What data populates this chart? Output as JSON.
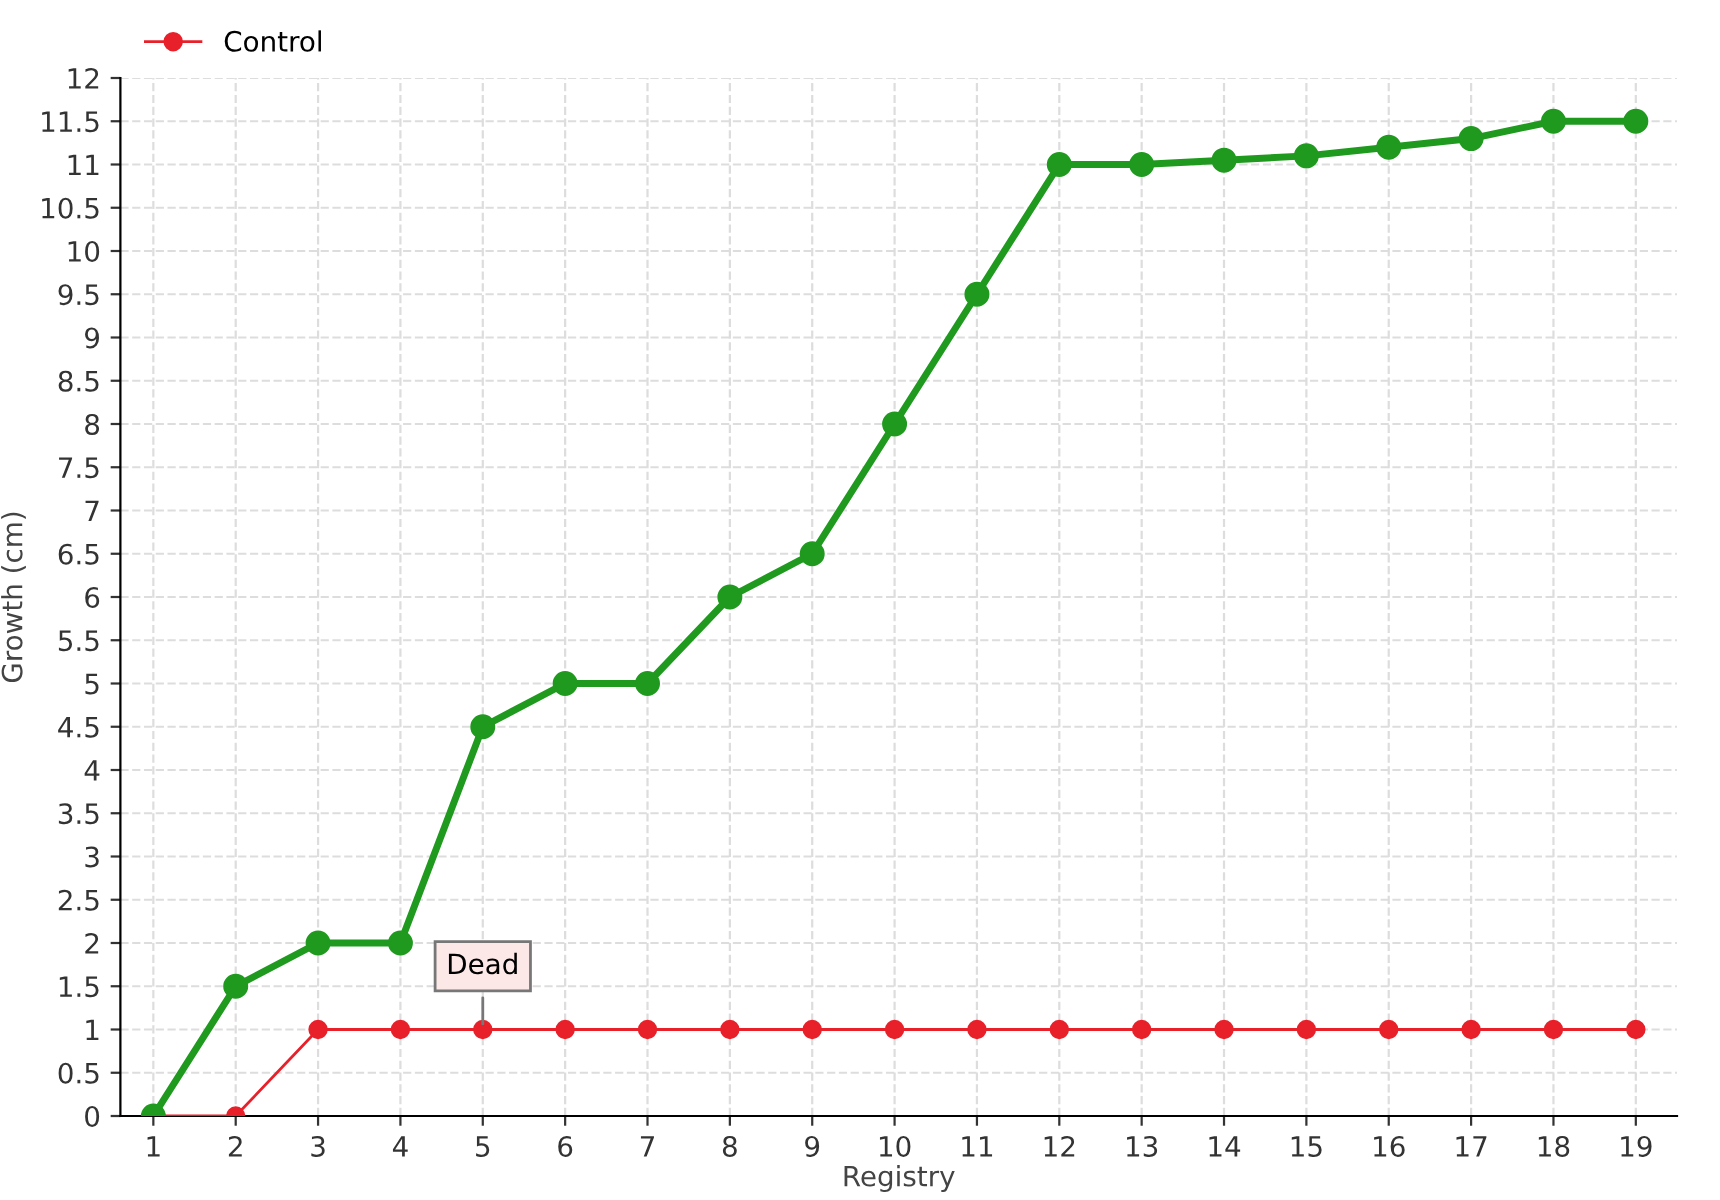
{
  "chart_data": {
    "type": "line",
    "xlabel": "Registry",
    "ylabel": "Growth (cm)",
    "categories": [
      "1",
      "2",
      "3",
      "4",
      "5",
      "6",
      "7",
      "8",
      "9",
      "10",
      "11",
      "12",
      "13",
      "14",
      "15",
      "16",
      "17",
      "18",
      "19"
    ],
    "series": [
      {
        "color": "#1f9a1f",
        "values": [
          0,
          1.5,
          2,
          2,
          4.5,
          5,
          5,
          6,
          6.5,
          8,
          9.5,
          11,
          11,
          11.05,
          11.1,
          11.2,
          11.3,
          11.5,
          11.5
        ]
      },
      {
        "name": "Control",
        "color": "#e8202a",
        "values": [
          0,
          0,
          1,
          1,
          1,
          1,
          1,
          1,
          1,
          1,
          1,
          1,
          1,
          1,
          1,
          1,
          1,
          1,
          1
        ]
      }
    ],
    "ylim": [
      0,
      12
    ],
    "yticks": [
      0,
      0.5,
      1,
      1.5,
      2,
      2.5,
      3,
      3.5,
      4,
      4.5,
      5,
      5.5,
      6,
      6.5,
      7,
      7.5,
      8,
      8.5,
      9,
      9.5,
      10,
      10.5,
      11,
      11.5,
      12
    ],
    "annotations": [
      {
        "text": "Dead",
        "x": "5",
        "y": 1
      }
    ],
    "grid": true,
    "legend": "top left",
    "marker": "circle",
    "line_style": "solid"
  }
}
